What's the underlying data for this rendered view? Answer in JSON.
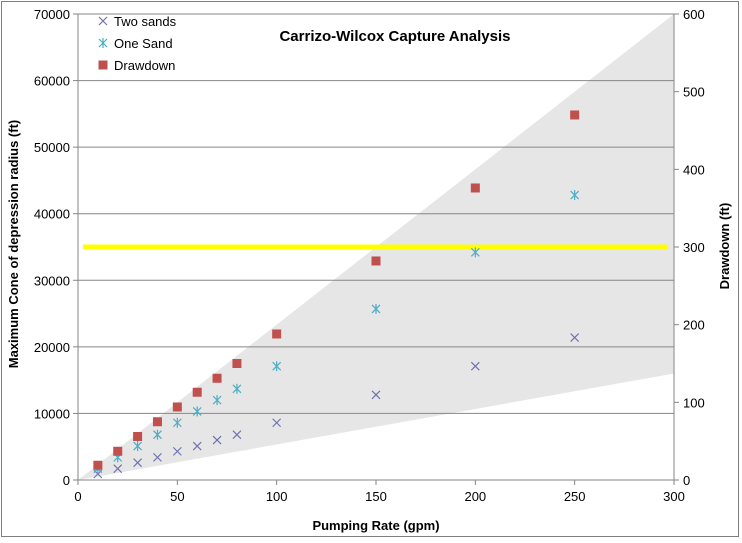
{
  "chart_data": {
    "type": "scatter",
    "title": "Carrizo-Wilcox Capture Analysis",
    "xlabel": "Pumping Rate (gpm)",
    "ylabel": "Maximum Cone of depression radius (ft)",
    "y2label": "Drawdown (ft)",
    "xlim": [
      0,
      300
    ],
    "ylim": [
      0,
      70000
    ],
    "y2lim": [
      0,
      600
    ],
    "xticks": [
      "0",
      "50",
      "100",
      "150",
      "200",
      "250",
      "300"
    ],
    "yticks": [
      "0",
      "10000",
      "20000",
      "30000",
      "40000",
      "50000",
      "60000",
      "70000"
    ],
    "y2ticks": [
      "0",
      "100",
      "200",
      "300",
      "400",
      "500",
      "600"
    ],
    "grid": true,
    "legend_position": "top-left",
    "reference_line": {
      "y2": 300,
      "color": "#ffff00"
    },
    "shaded_region": {
      "color": "#e6e6e6",
      "apex": [
        0,
        0
      ],
      "upper_edge_end": [
        300,
        70000
      ],
      "lower_edge_end": [
        300,
        16000
      ]
    },
    "series": [
      {
        "name": "Two sands",
        "axis": "left",
        "marker": "x",
        "color": "#7072b0",
        "x": [
          10,
          20,
          30,
          40,
          50,
          60,
          70,
          80,
          100,
          150,
          200,
          250
        ],
        "y": [
          900,
          1700,
          2600,
          3400,
          4300,
          5100,
          6000,
          6800,
          8600,
          12800,
          17100,
          21400
        ]
      },
      {
        "name": "One Sand",
        "axis": "left",
        "marker": "star",
        "color": "#4bacc6",
        "x": [
          10,
          20,
          30,
          40,
          50,
          60,
          70,
          80,
          100,
          150,
          200,
          250
        ],
        "y": [
          1700,
          3400,
          5100,
          6800,
          8600,
          10300,
          12000,
          13700,
          17100,
          25700,
          34200,
          42800
        ]
      },
      {
        "name": "Drawdown",
        "axis": "right",
        "marker": "square",
        "color": "#c0504d",
        "x": [
          10,
          20,
          30,
          40,
          50,
          60,
          70,
          80,
          100,
          150,
          200,
          250
        ],
        "y": [
          19,
          37,
          56,
          75,
          94,
          113,
          131,
          150,
          188,
          282,
          376,
          470
        ]
      }
    ]
  }
}
